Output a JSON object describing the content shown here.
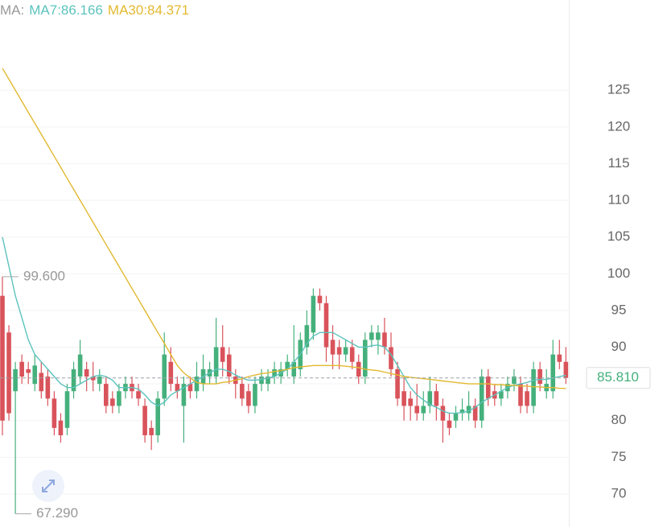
{
  "chart_data": {
    "type": "candlestick",
    "legend_label": "MA:",
    "up_color": "#45b07c",
    "down_color": "#d9535b",
    "ylim": [
      65.5,
      137.3
    ],
    "yticks": [
      70,
      75,
      80,
      85,
      90,
      95,
      100,
      105,
      110,
      115,
      120,
      125
    ],
    "grid": true,
    "ohlc": [
      [
        97,
        99.6,
        78,
        80
      ],
      [
        92,
        93,
        80,
        81
      ],
      [
        84,
        88,
        67.29,
        87
      ],
      [
        88,
        89,
        85,
        86
      ],
      [
        87,
        88,
        85,
        86.5
      ],
      [
        85,
        89,
        84,
        87.5
      ],
      [
        86.5,
        88,
        83,
        84
      ],
      [
        86,
        87,
        82,
        83
      ],
      [
        83,
        84,
        78,
        79
      ],
      [
        80,
        81,
        77,
        78
      ],
      [
        79,
        85,
        78,
        84
      ],
      [
        84,
        88,
        83,
        87
      ],
      [
        86,
        91,
        85,
        89
      ],
      [
        87,
        88,
        84,
        86
      ],
      [
        86,
        88,
        84,
        85.5
      ],
      [
        85,
        87,
        84,
        86
      ],
      [
        85,
        86,
        81,
        82
      ],
      [
        83,
        84,
        81,
        82
      ],
      [
        82,
        85,
        81,
        84
      ],
      [
        84,
        86,
        83,
        85
      ],
      [
        85,
        86,
        83,
        84
      ],
      [
        84,
        85,
        82,
        83
      ],
      [
        82,
        83,
        77,
        78
      ],
      [
        79,
        80,
        76,
        78
      ],
      [
        78,
        84,
        77,
        83
      ],
      [
        83,
        92,
        82,
        89
      ],
      [
        88,
        90,
        84,
        85
      ],
      [
        85,
        86,
        83,
        84
      ],
      [
        82,
        86,
        77,
        85
      ],
      [
        85,
        86,
        83,
        84
      ],
      [
        84,
        88,
        83,
        86
      ],
      [
        85,
        89,
        84,
        87
      ],
      [
        86,
        88,
        85,
        87
      ],
      [
        86,
        94,
        85,
        90
      ],
      [
        90,
        93,
        86,
        88
      ],
      [
        89,
        90,
        85,
        86
      ],
      [
        86,
        87,
        83,
        85
      ],
      [
        85,
        86,
        82,
        83
      ],
      [
        84,
        85,
        81,
        82
      ],
      [
        82,
        86,
        81,
        85
      ],
      [
        85,
        87,
        84,
        86
      ],
      [
        85,
        87,
        84,
        86
      ],
      [
        86,
        88,
        85,
        87
      ],
      [
        86,
        88,
        85,
        87
      ],
      [
        87,
        89,
        86,
        88
      ],
      [
        86,
        93,
        85,
        88
      ],
      [
        87,
        92,
        86,
        91
      ],
      [
        90,
        95,
        89,
        93
      ],
      [
        92,
        98,
        91,
        97
      ],
      [
        97,
        98,
        95,
        96
      ],
      [
        96,
        97,
        88,
        90
      ],
      [
        91,
        93,
        87,
        89
      ],
      [
        90,
        91,
        87,
        89
      ],
      [
        89,
        91,
        88,
        90
      ],
      [
        90,
        91,
        87,
        88
      ],
      [
        88,
        89,
        85,
        86
      ],
      [
        86,
        92,
        85,
        91
      ],
      [
        91,
        93,
        90,
        92
      ],
      [
        91,
        93,
        89,
        92
      ],
      [
        92,
        94,
        89,
        90
      ],
      [
        90,
        92,
        86,
        87
      ],
      [
        87,
        88,
        82,
        83
      ],
      [
        84,
        86,
        80,
        82
      ],
      [
        83,
        84,
        80,
        82
      ],
      [
        82,
        85,
        80,
        81
      ],
      [
        81,
        84,
        80,
        82
      ],
      [
        82,
        86,
        81,
        84
      ],
      [
        84,
        85,
        80,
        82
      ],
      [
        82,
        83,
        77,
        80
      ],
      [
        80,
        81,
        78,
        79
      ],
      [
        80,
        82,
        79,
        81
      ],
      [
        81,
        83,
        80,
        81.5
      ],
      [
        81,
        84,
        80,
        82
      ],
      [
        82,
        83,
        79,
        80
      ],
      [
        80,
        87,
        79,
        86
      ],
      [
        86,
        87,
        82,
        83
      ],
      [
        84,
        85,
        82,
        83
      ],
      [
        83,
        85,
        82,
        84
      ],
      [
        84,
        86,
        83,
        85
      ],
      [
        85,
        87,
        84,
        86
      ],
      [
        85,
        86,
        81,
        82
      ],
      [
        84,
        85,
        81,
        82
      ],
      [
        82,
        88,
        81,
        87
      ],
      [
        87,
        88,
        84,
        85
      ],
      [
        84,
        87,
        83,
        85
      ],
      [
        84,
        91,
        83,
        89
      ],
      [
        89,
        91,
        87,
        88
      ],
      [
        88,
        90,
        85,
        85.81
      ]
    ],
    "series": [
      {
        "name": "MA7:86.166",
        "color": "#5cc3bd",
        "values": [
          105,
          101,
          97,
          94,
          91,
          89,
          88,
          87,
          86,
          85,
          84.5,
          84.5,
          85,
          85.5,
          86,
          86.2,
          86,
          85.5,
          84.5,
          84.5,
          84.5,
          84.3,
          83.5,
          82.5,
          82,
          82.5,
          83.5,
          84,
          84.5,
          85,
          85.5,
          86,
          86.5,
          87,
          87,
          86.7,
          86.2,
          85.8,
          85.5,
          85.5,
          85.6,
          85.8,
          86,
          86.5,
          87,
          88,
          89,
          90.5,
          91.5,
          92,
          92,
          92,
          91.5,
          91,
          90.5,
          90,
          90,
          90.2,
          90.3,
          90,
          89,
          87.5,
          86,
          84.5,
          83.5,
          82.8,
          82.2,
          81.8,
          81.3,
          81,
          81,
          81.1,
          81.3,
          81.8,
          82.5,
          83,
          83.5,
          84,
          84.5,
          84.8,
          85,
          85.2,
          85.5,
          85.6,
          85.6,
          85.8,
          86,
          86.166
        ]
      },
      {
        "name": "MA30:84.371",
        "color": "#e2b930",
        "values": [
          128,
          126.5,
          125,
          123.5,
          122,
          120.5,
          119,
          117.5,
          116,
          114.5,
          113,
          111.5,
          110,
          108.5,
          107,
          105.5,
          104,
          102.5,
          101,
          99.5,
          98,
          96.5,
          95,
          93.5,
          92,
          90.5,
          89,
          87.5,
          86.5,
          85.8,
          85.2,
          85,
          85,
          85,
          85.2,
          85.3,
          85.5,
          85.7,
          86,
          86.2,
          86.4,
          86.5,
          86.7,
          86.8,
          87,
          87.2,
          87.3,
          87.4,
          87.5,
          87.5,
          87.5,
          87.5,
          87.5,
          87.4,
          87.3,
          87.2,
          87,
          86.9,
          86.8,
          86.6,
          86.4,
          86.2,
          86,
          85.9,
          85.8,
          85.7,
          85.6,
          85.5,
          85.4,
          85.3,
          85.2,
          85.1,
          85,
          85,
          85,
          85,
          84.9,
          84.9,
          84.8,
          84.8,
          84.7,
          84.7,
          84.6,
          84.6,
          84.5,
          84.5,
          84.4,
          84.371
        ]
      }
    ],
    "high_label": {
      "text": "99.600",
      "value": 99.6
    },
    "low_label": {
      "text": "67.290",
      "value": 67.29
    },
    "last_price": {
      "text": "85.810",
      "value": 85.81
    }
  }
}
